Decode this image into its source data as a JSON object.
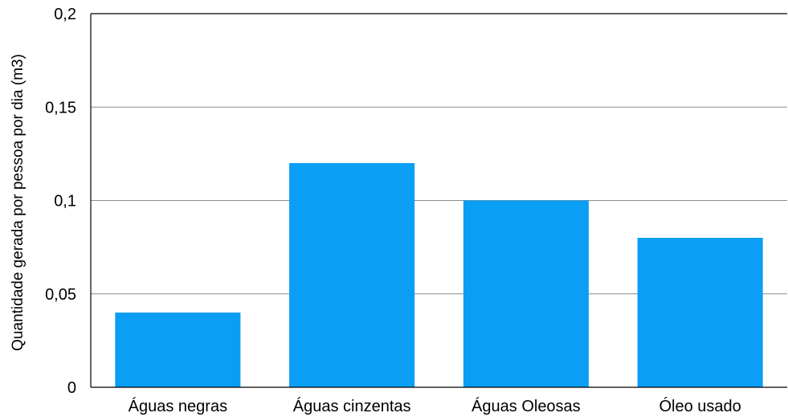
{
  "chart_data": {
    "type": "bar",
    "title": "",
    "xlabel": "",
    "ylabel": "Quantidade gerada por pessoa por dia (m3)",
    "categories": [
      "Águas negras",
      "Águas cinzentas",
      "Águas Oleosas",
      "Óleo usado"
    ],
    "values": [
      0.04,
      0.12,
      0.1,
      0.08
    ],
    "ylim": [
      0,
      0.2
    ],
    "yticks": [
      0,
      0.05,
      0.1,
      0.15,
      0.2
    ],
    "ytick_labels": [
      "0",
      "0,05",
      "0,1",
      "0,15",
      "0,2"
    ],
    "grid": true,
    "legend": "none",
    "bar_color": "#0a9ef5",
    "grid_color": "#8c8c8c",
    "axis_color": "#000000"
  }
}
